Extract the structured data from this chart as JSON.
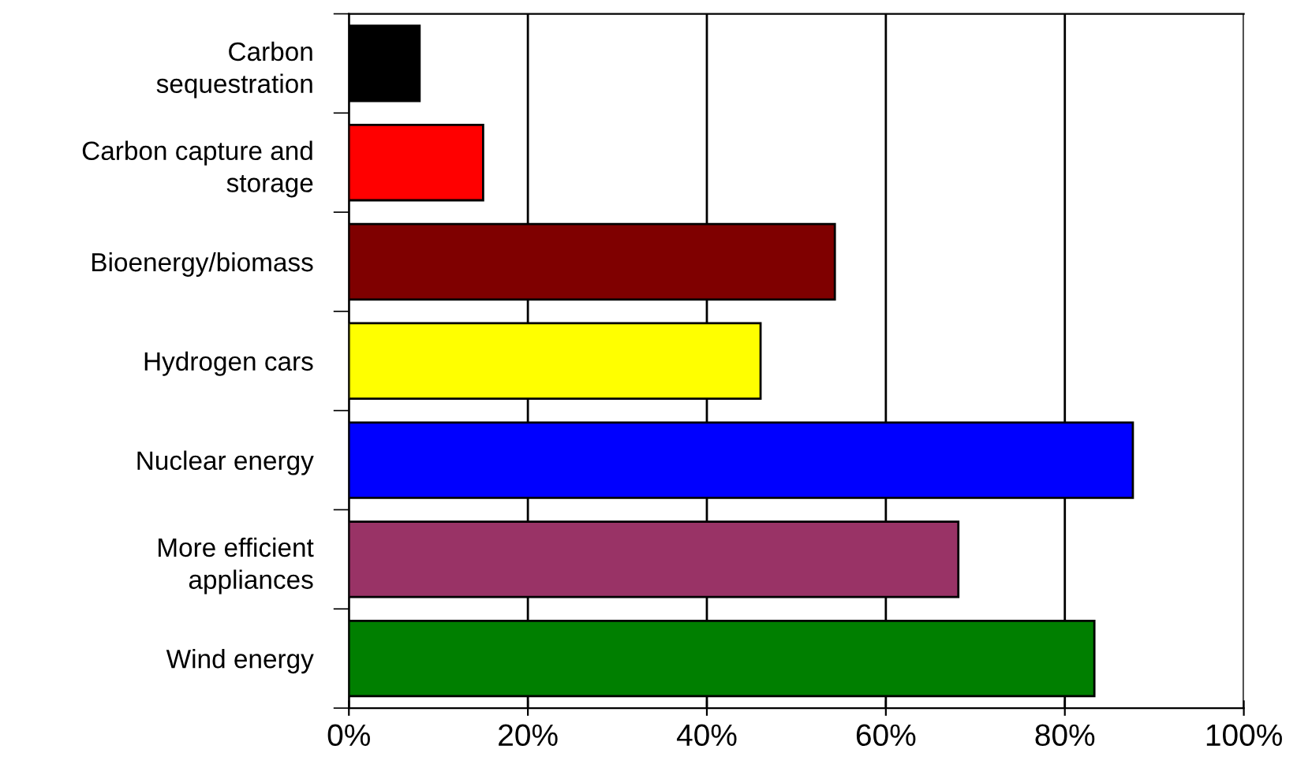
{
  "chart_data": {
    "type": "bar",
    "orientation": "horizontal",
    "categories": [
      "Carbon\nsequestration",
      "Carbon capture and\nstorage",
      "Bioenergy/biomass",
      "Hydrogen cars",
      "Nuclear energy",
      "More efficient\nappliances",
      "Wind energy"
    ],
    "values": [
      7.9,
      15.0,
      54.3,
      46.0,
      87.6,
      68.1,
      83.3
    ],
    "colors": [
      "#000000",
      "#ff0000",
      "#7f0000",
      "#ffff00",
      "#0000ff",
      "#993366",
      "#007f00"
    ],
    "xlim": [
      0,
      100
    ],
    "xticks": [
      {
        "value": 0,
        "label": "0%"
      },
      {
        "value": 20,
        "label": "20%"
      },
      {
        "value": 40,
        "label": "40%"
      },
      {
        "value": 60,
        "label": "60%"
      },
      {
        "value": 80,
        "label": "80%"
      },
      {
        "value": 100,
        "label": "100%"
      }
    ],
    "grid": "x",
    "legend": false
  }
}
